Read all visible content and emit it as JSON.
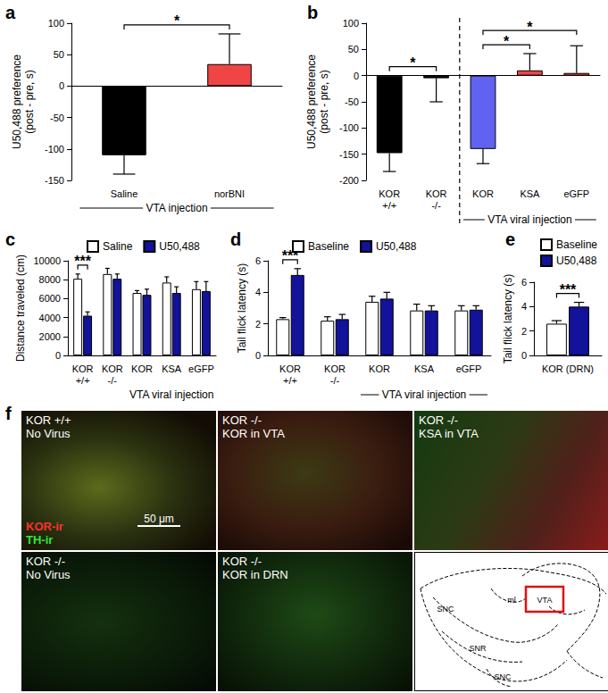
{
  "chart_data": [
    {
      "panel": "a",
      "type": "bar",
      "categories": [
        "Saline",
        "norBNI"
      ],
      "values": [
        -110,
        35
      ],
      "errors": [
        30,
        48
      ],
      "colors": [
        "#000000",
        "#f04545"
      ],
      "ylabel": "U50,488 preference\n(post - pre, s)",
      "ylim": [
        -150,
        100
      ],
      "yticks": [
        -150,
        -100,
        -50,
        0,
        50,
        100
      ],
      "groups": [
        {
          "label": "VTA injection",
          "categories": [
            "Saline",
            "norBNI"
          ]
        }
      ],
      "annotations": [
        {
          "text": "*",
          "categories": [
            "Saline",
            "norBNI"
          ]
        }
      ]
    },
    {
      "panel": "b",
      "type": "bar",
      "categories": [
        "KOR\n+/+",
        "KOR\n-/-",
        "KOR",
        "KSA",
        "eGFP"
      ],
      "values": [
        -148,
        -5,
        -140,
        10,
        5
      ],
      "errors": [
        35,
        45,
        28,
        32,
        52
      ],
      "colors": [
        "#000000",
        "#000000",
        "#6262f2",
        "#f04545",
        "#f04545"
      ],
      "ylabel": "U50,488 preference\n(post - pre, s)",
      "ylim": [
        -200,
        100
      ],
      "yticks": [
        -200,
        -150,
        -100,
        -50,
        0,
        50,
        100
      ],
      "groups": [
        {
          "label": "VTA viral injection",
          "categories": [
            "KOR",
            "KSA",
            "eGFP"
          ],
          "line_style": "dashed"
        }
      ],
      "annotations": [
        {
          "text": "*",
          "categories": [
            "KOR\n+/+",
            "KOR\n-/-"
          ]
        },
        {
          "text": "*",
          "categories": [
            "KOR",
            "KSA"
          ]
        },
        {
          "text": "*",
          "categories": [
            "KOR",
            "eGFP"
          ]
        }
      ]
    },
    {
      "panel": "c",
      "type": "bar",
      "categories": [
        "KOR\n+/+",
        "KOR\n-/-",
        "KOR",
        "KSA",
        "eGFP"
      ],
      "series": [
        {
          "name": "Saline",
          "color": "#ffffff",
          "values": [
            8100,
            8600,
            6600,
            7700,
            7000
          ],
          "errors": [
            500,
            600,
            250,
            600,
            800
          ]
        },
        {
          "name": "U50,488",
          "color": "#12129a",
          "values": [
            4200,
            8100,
            6400,
            6600,
            6800
          ],
          "errors": [
            400,
            500,
            600,
            650,
            1000
          ]
        }
      ],
      "ylabel": "Distance traveled (cm)",
      "ylim": [
        0,
        10000
      ],
      "yticks": [
        0,
        2000,
        4000,
        6000,
        8000,
        10000
      ],
      "legend": "top",
      "groups": [
        {
          "label": "VTA viral injection",
          "categories": [
            "KOR",
            "KSA",
            "eGFP"
          ]
        }
      ],
      "annotations": [
        {
          "text": "***",
          "category": "KOR\n+/+"
        }
      ]
    },
    {
      "panel": "d",
      "type": "bar",
      "categories": [
        "KOR\n+/+",
        "KOR\n-/-",
        "KOR",
        "KSA",
        "eGFP"
      ],
      "series": [
        {
          "name": "Baseline",
          "color": "#ffffff",
          "values": [
            2.3,
            2.2,
            3.4,
            2.85,
            2.85
          ],
          "errors": [
            0.1,
            0.25,
            0.35,
            0.4,
            0.3
          ]
        },
        {
          "name": "U50,488",
          "color": "#12129a",
          "values": [
            5.1,
            2.3,
            3.6,
            2.85,
            2.9
          ],
          "errors": [
            0.4,
            0.3,
            0.4,
            0.3,
            0.25
          ]
        }
      ],
      "ylabel": "Tail flick latency (s)",
      "ylim": [
        0,
        6
      ],
      "yticks": [
        0,
        2,
        4,
        6
      ],
      "legend": "top",
      "groups": [
        {
          "label": "VTA viral injection",
          "categories": [
            "KOR",
            "KSA",
            "eGFP"
          ]
        }
      ],
      "annotations": [
        {
          "text": "***",
          "category": "KOR\n+/+"
        }
      ]
    },
    {
      "panel": "e",
      "type": "bar",
      "categories": [
        "KOR (DRN)"
      ],
      "series": [
        {
          "name": "Baseline",
          "color": "#ffffff",
          "values": [
            2.6
          ],
          "errors": [
            0.25
          ]
        },
        {
          "name": "U50,488",
          "color": "#12129a",
          "values": [
            4.0
          ],
          "errors": [
            0.35
          ]
        }
      ],
      "ylabel": "Tail flick latency (s)",
      "ylim": [
        0,
        6
      ],
      "yticks": [
        0,
        2,
        4,
        6
      ],
      "legend": "top",
      "annotations": [
        {
          "text": "***",
          "category": "KOR (DRN)"
        }
      ]
    }
  ],
  "image_panels": {
    "panel": "f",
    "tiles": [
      {
        "lines": [
          "KOR +/+",
          "No Virus"
        ]
      },
      {
        "lines": [
          "KOR -/-",
          "KOR in VTA"
        ]
      },
      {
        "lines": [
          "KOR -/-",
          "KSA in VTA"
        ]
      },
      {
        "lines": [
          "KOR -/-",
          "No Virus"
        ]
      },
      {
        "lines": [
          "KOR -/-",
          "KOR in DRN"
        ]
      }
    ],
    "stain_labels": [
      {
        "text": "KOR-ir",
        "color": "#ff3030"
      },
      {
        "text": "TH-ir",
        "color": "#33e633"
      }
    ],
    "scale_bar": "50 μm",
    "atlas_labels": [
      "SNC",
      "ml",
      "VTA",
      "SNR",
      "SNC"
    ]
  }
}
